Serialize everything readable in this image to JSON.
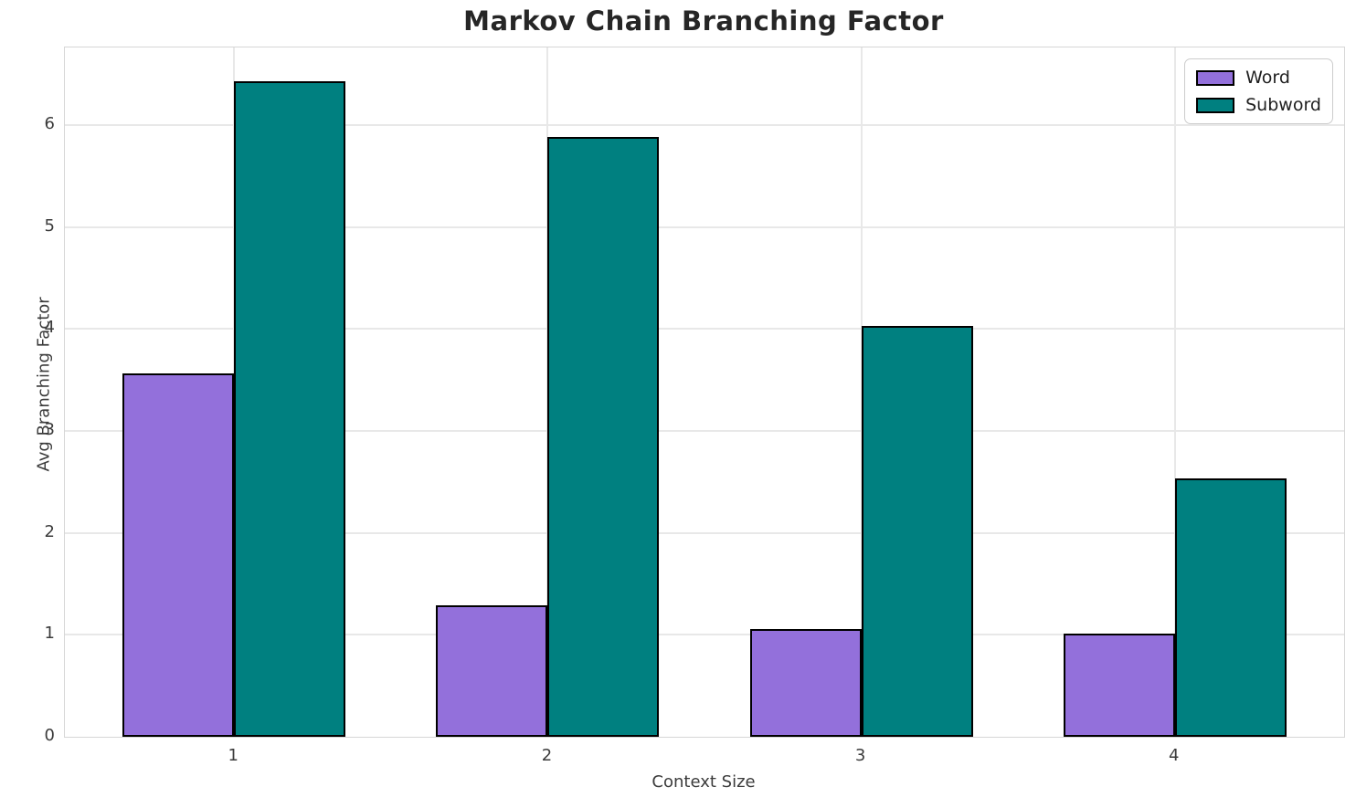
{
  "chart_data": {
    "type": "bar",
    "title": "Markov Chain Branching Factor",
    "xlabel": "Context Size",
    "ylabel": "Avg Branching Factor",
    "categories": [
      "1",
      "2",
      "3",
      "4"
    ],
    "series": [
      {
        "name": "Word",
        "color": "#9370DB",
        "values": [
          3.56,
          1.29,
          1.06,
          1.01
        ]
      },
      {
        "name": "Subword",
        "color": "#008080",
        "values": [
          6.43,
          5.88,
          4.03,
          2.53
        ]
      }
    ],
    "bar_edge_color": "#000000",
    "ylim": [
      0,
      6.76
    ],
    "yticks": [
      0,
      1,
      2,
      3,
      4,
      5,
      6
    ],
    "grid": true,
    "legend_position": "upper right"
  },
  "colors": {
    "background": "#ffffff",
    "grid": "#e8e8e8",
    "spine": "#d6d6d6",
    "title_text": "#262626",
    "tick_text": "#3b3b3b"
  }
}
